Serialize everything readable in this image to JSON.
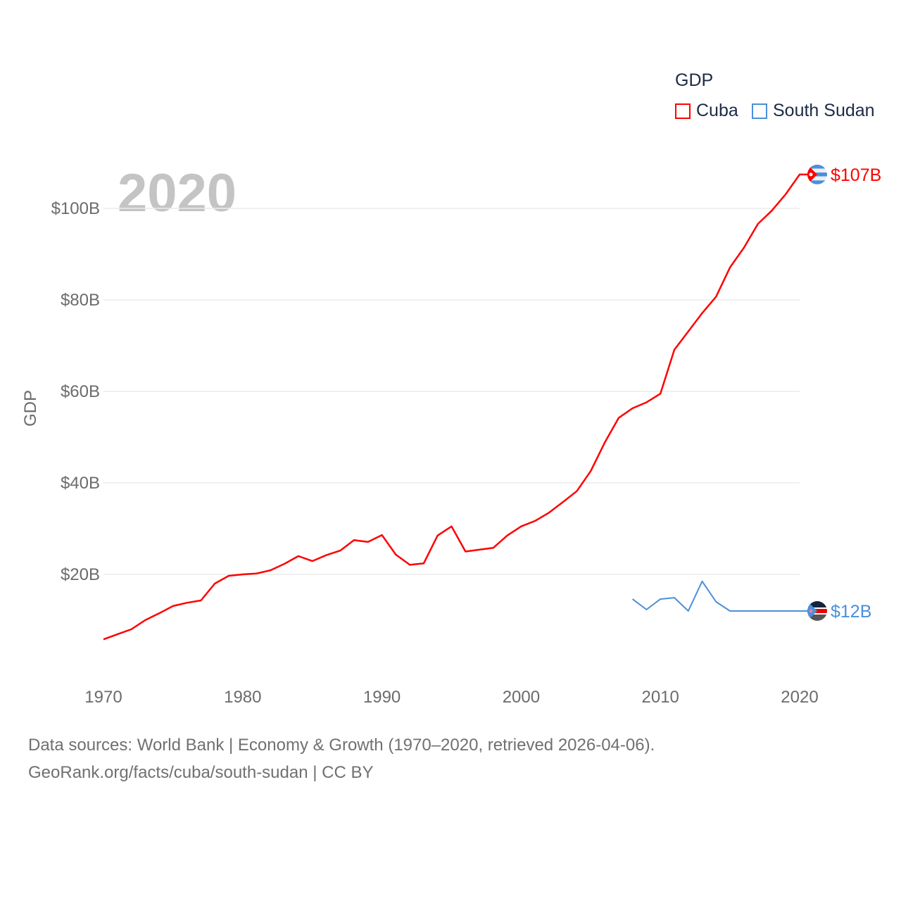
{
  "chart_data": {
    "type": "line",
    "title": "GDP",
    "year_label": "2020",
    "ylabel": "GDP",
    "xlabel": "",
    "xlim": [
      1970,
      2020
    ],
    "ylim": [
      0,
      100
    ],
    "x_ticks": [
      "1970",
      "1980",
      "1990",
      "2000",
      "2010",
      "2020"
    ],
    "y_ticks": [
      {
        "value": 20,
        "label": "$20B"
      },
      {
        "value": 40,
        "label": "$40B"
      },
      {
        "value": 60,
        "label": "$60B"
      },
      {
        "value": 80,
        "label": "$80B"
      },
      {
        "value": 100,
        "label": "$100B"
      }
    ],
    "grid": true,
    "legend_position": "top-right",
    "series": [
      {
        "name": "Cuba",
        "color": "#ff0000",
        "end_label": "$107B",
        "flag_icon": "cuba-flag-icon",
        "start_year": 1970,
        "values": [
          5.8,
          6.9,
          8.0,
          10.0,
          11.5,
          13.1,
          13.8,
          14.3,
          18.0,
          19.7,
          20.0,
          20.2,
          20.9,
          22.3,
          24.0,
          22.9,
          24.2,
          25.2,
          27.5,
          27.1,
          28.6,
          24.3,
          22.1,
          22.4,
          28.5,
          30.5,
          25.0,
          25.4,
          25.8,
          28.5,
          30.5,
          31.7,
          33.5,
          35.8,
          38.2,
          42.6,
          48.8,
          54.2,
          56.3,
          57.6,
          59.5,
          69.1,
          73.1,
          77.1,
          80.7,
          87.1,
          91.4,
          96.6,
          99.5,
          103.1,
          107.4
        ]
      },
      {
        "name": "South Sudan",
        "color": "#4a90d9",
        "end_label": "$12B",
        "flag_icon": "south-sudan-flag-icon",
        "start_year": 2008,
        "values": [
          14.6,
          12.3,
          14.6,
          14.9,
          12.0,
          18.5,
          14.0,
          12.0,
          12.0,
          12.0,
          12.0,
          12.0,
          12.0
        ]
      }
    ]
  },
  "footer": {
    "line1": "Data sources: World Bank | Economy & Growth (1970–2020, retrieved 2026-04-06).",
    "line2": "GeoRank.org/facts/cuba/south-sudan | CC BY"
  }
}
